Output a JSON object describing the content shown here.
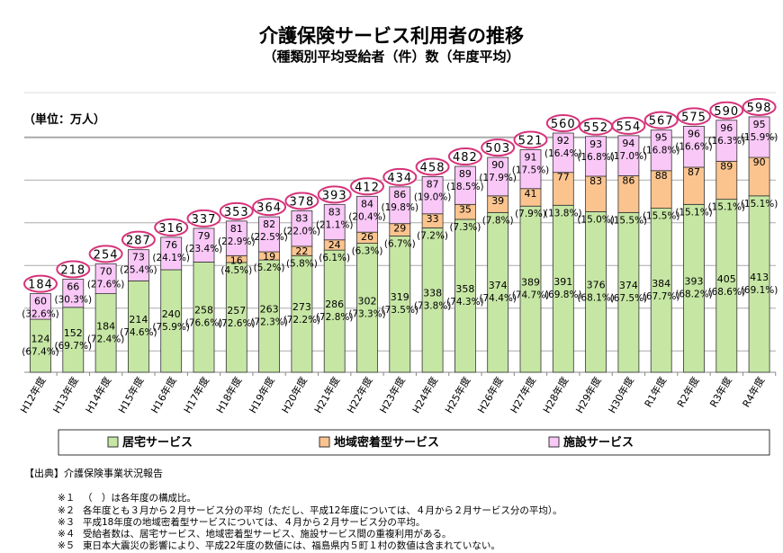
{
  "title": "介護保険サービス利用者の推移",
  "subtitle": "（種類別平均受給者（件）数（年度平均）",
  "unit": "（単位：万人）",
  "colors": {
    "home": "#c6e6a4",
    "community": "#fbc48f",
    "facility": "#f9c8f7",
    "total_ellipse": "#d6337a"
  },
  "chart_data": {
    "type": "bar",
    "stacked": true,
    "title": "介護保険サービス利用者の推移",
    "ylabel": "（単位：万人）",
    "grid": true,
    "legend_position": "bottom",
    "categories": [
      "H12年度",
      "H13年度",
      "H14年度",
      "H15年度",
      "H16年度",
      "H17年度",
      "H18年度",
      "H19年度",
      "H20年度",
      "H21年度",
      "H22年度",
      "H23年度",
      "H24年度",
      "H25年度",
      "H26年度",
      "H27年度",
      "H28年度",
      "H29年度",
      "H30年度",
      "R1年度",
      "R2年度",
      "R3年度",
      "R4年度"
    ],
    "series": [
      {
        "name": "居宅サービス",
        "values": [
          124,
          152,
          184,
          214,
          240,
          258,
          257,
          263,
          273,
          286,
          302,
          319,
          338,
          358,
          374,
          389,
          391,
          376,
          374,
          384,
          393,
          405,
          413
        ],
        "percents": [
          "(67.4%)",
          "(69.7%)",
          "(72.4%)",
          "(74.6%)",
          "(75.9%)",
          "(76.6%)",
          "(72.6%)",
          "(72.3%)",
          "(72.2%)",
          "(72.8%)",
          "(73.3%)",
          "(73.5%)",
          "(73.8%)",
          "(74.3%)",
          "(74.4%)",
          "(74.7%)",
          "(69.8%)",
          "(68.1%)",
          "(67.5%)",
          "(67.7%)",
          "(68.2%)",
          "(68.6%)",
          "(69.1%)"
        ]
      },
      {
        "name": "地域密着型サービス",
        "values": [
          null,
          null,
          null,
          null,
          null,
          null,
          16,
          19,
          22,
          24,
          26,
          29,
          33,
          35,
          39,
          41,
          77,
          83,
          86,
          88,
          87,
          89,
          90
        ],
        "percents": [
          null,
          null,
          null,
          null,
          null,
          null,
          "(4.5%)",
          "(5.2%)",
          "(5.8%)",
          "(6.1%)",
          "(6.3%)",
          "(6.7%)",
          "(7.2%)",
          "(7.3%)",
          "(7.8%)",
          "(7.9%)",
          "(13.8%)",
          "(15.0%)",
          "(15.5%)",
          "(15.5%)",
          "(15.1%)",
          "(15.1%)",
          "(15.1%)"
        ]
      },
      {
        "name": "施設サービス",
        "values": [
          60,
          66,
          70,
          73,
          76,
          79,
          81,
          82,
          83,
          83,
          84,
          86,
          87,
          89,
          90,
          91,
          92,
          93,
          94,
          95,
          96,
          96,
          95
        ],
        "percents": [
          "(32.6%)",
          "(30.3%)",
          "(27.6%)",
          "(25.4%)",
          "(24.1%)",
          "(23.4%)",
          "(22.9%)",
          "(22.5%)",
          "(22.0%)",
          "(21.1%)",
          "(20.4%)",
          "(19.8%)",
          "(19.0%)",
          "(18.5%)",
          "(17.9%)",
          "(17.5%)",
          "(16.4%)",
          "(16.8%)",
          "(17.0%)",
          "(16.8%)",
          "(16.6%)",
          "(16.3%)",
          "(15.9%)"
        ]
      }
    ],
    "totals": [
      184,
      218,
      254,
      287,
      316,
      337,
      353,
      364,
      378,
      393,
      412,
      434,
      458,
      482,
      503,
      521,
      560,
      552,
      554,
      567,
      575,
      590,
      598
    ]
  },
  "source": "【出典】介護保険事業状況報告",
  "notes": [
    {
      "mark": "※１",
      "text": "（　）は各年度の構成比。"
    },
    {
      "mark": "※２",
      "text": "各年度とも３月から２月サービス分の平均（ただし、平成12年度については、４月から２月サービス分の平均）。"
    },
    {
      "mark": "※３",
      "text": "平成18年度の地域密着型サービスについては、４月から２月サービス分の平均。"
    },
    {
      "mark": "※４",
      "text": "受給者数は、居宅サービス、地域密着型サービス、施設サービス間の重複利用がある。"
    },
    {
      "mark": "※５",
      "text": "東日本大震災の影響により、平成22年度の数値には、福島県内５町１村の数値は含まれていない。"
    }
  ]
}
